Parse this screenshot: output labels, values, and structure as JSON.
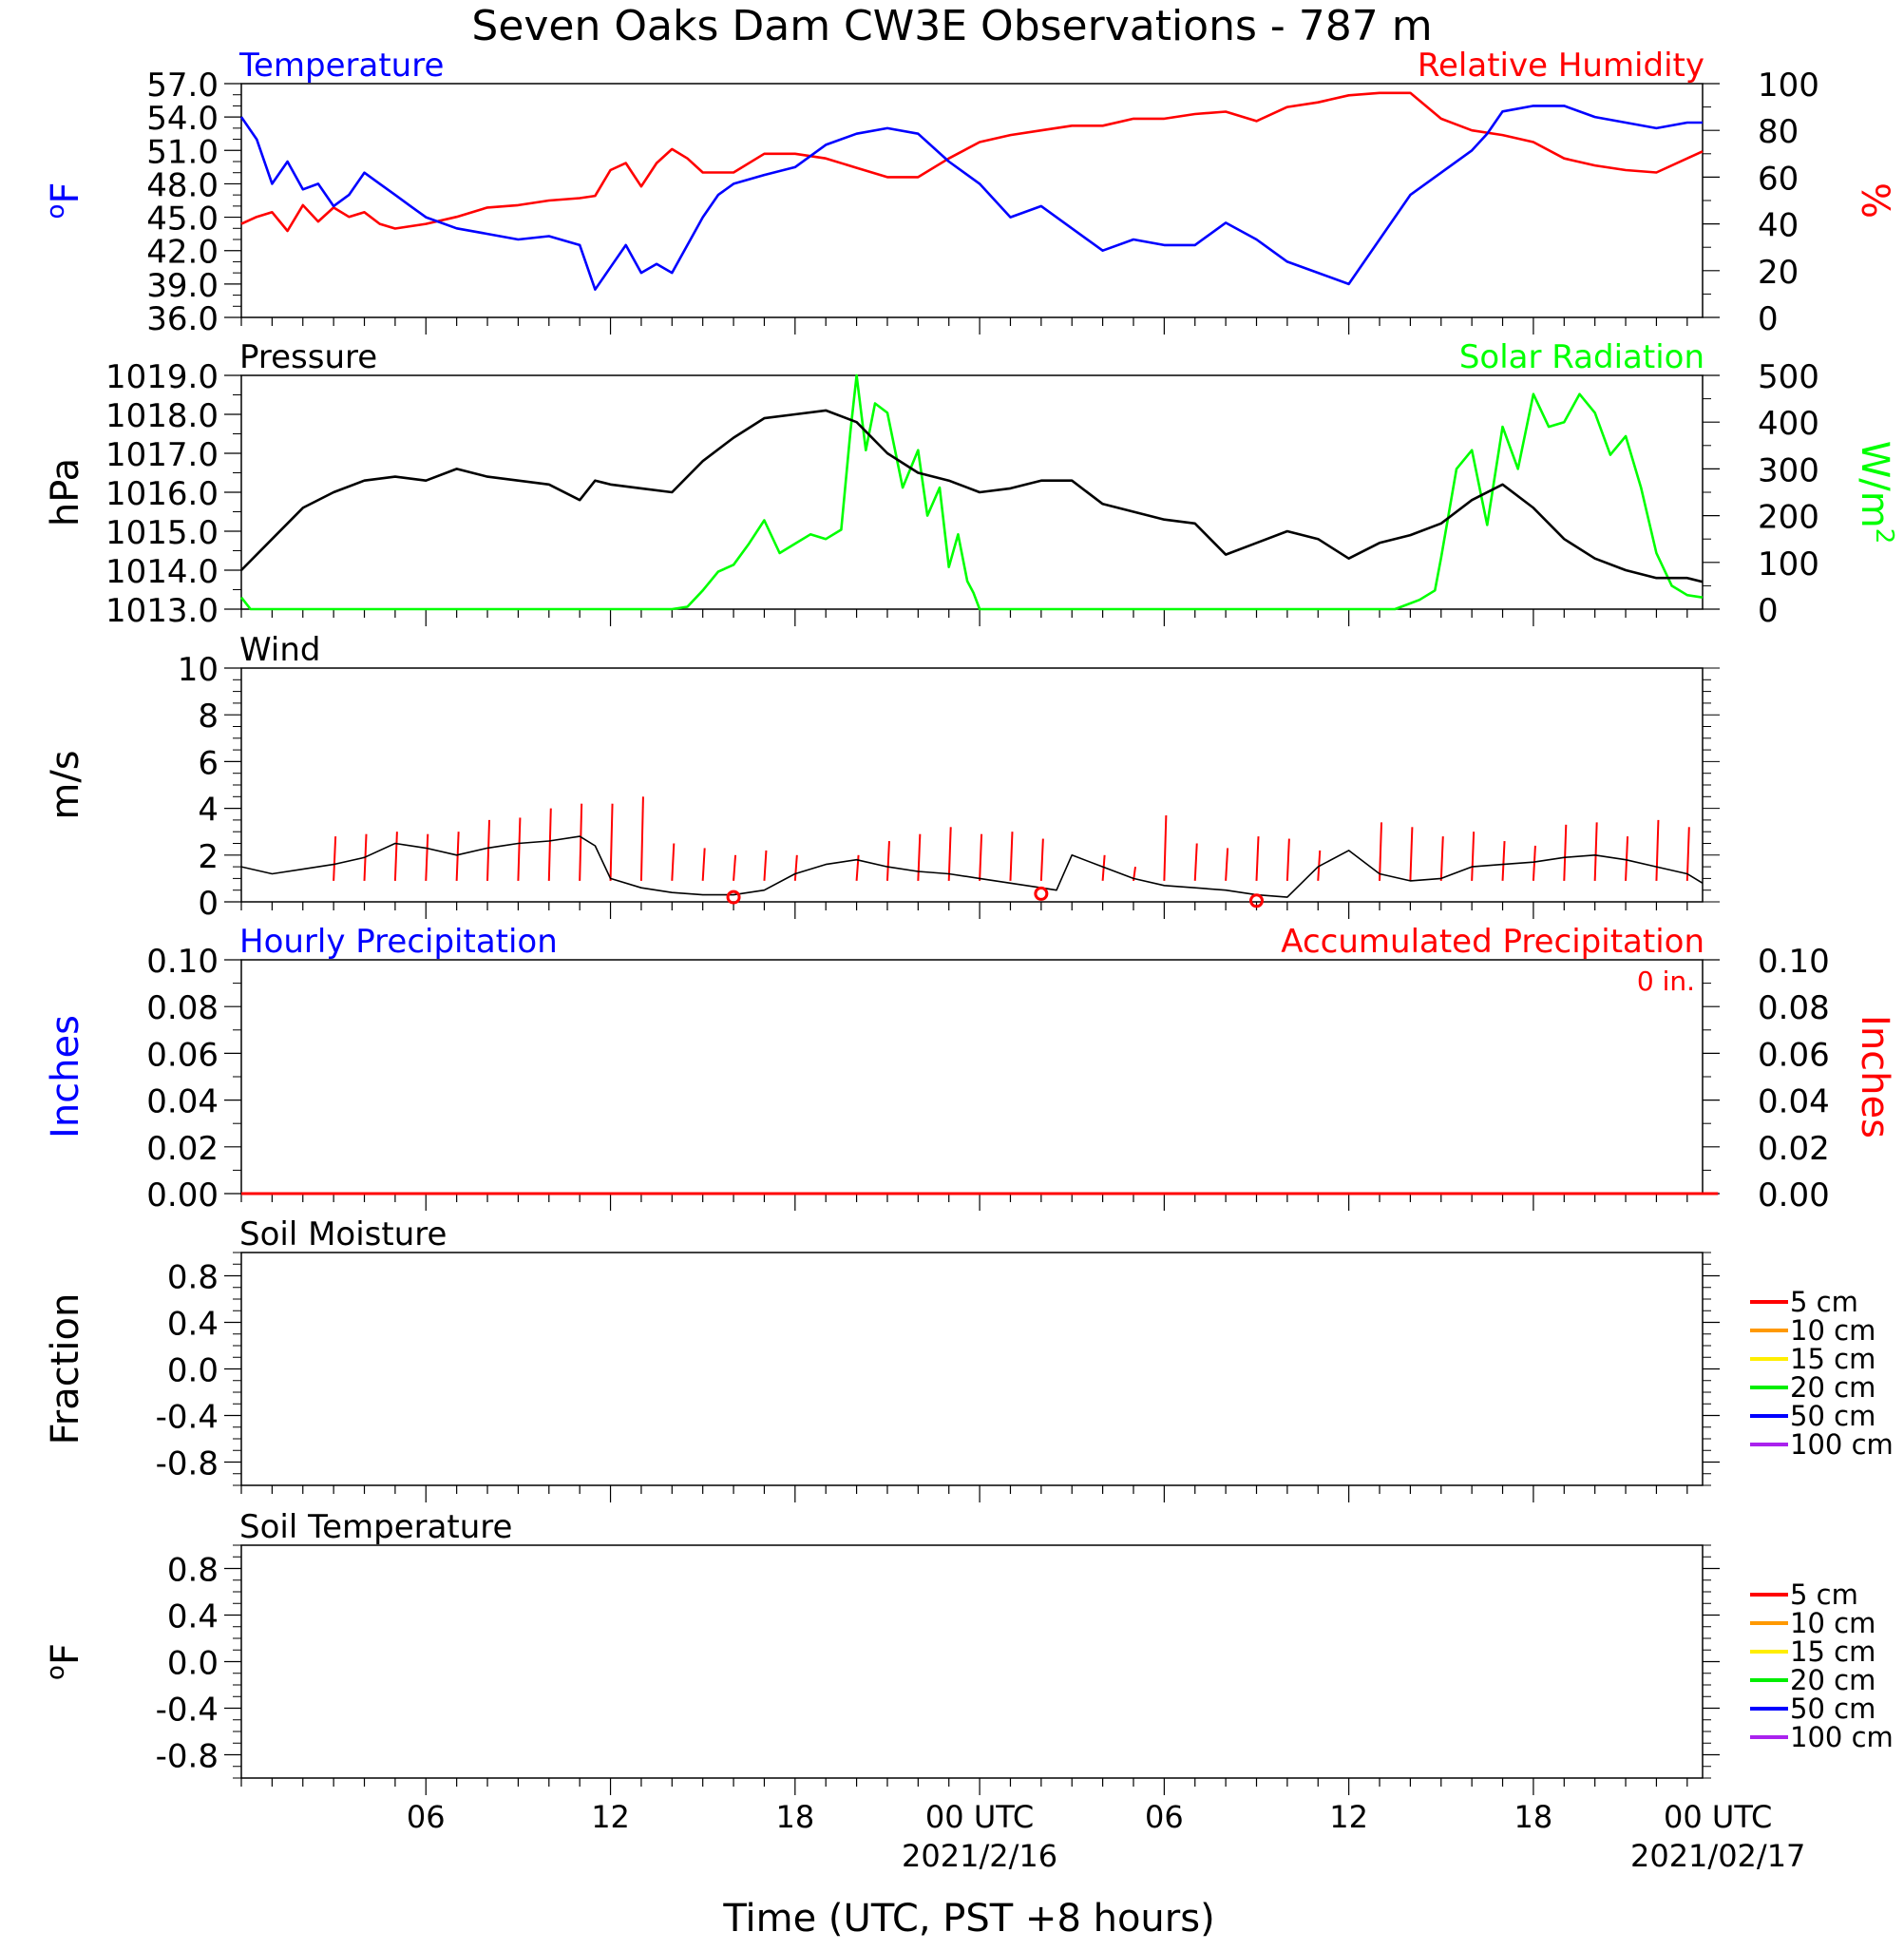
{
  "figure": {
    "title": "Seven Oaks Dam CW3E Observations - 787 m",
    "xlabel": "Time (UTC, PST +8 hours)",
    "x_ticks": [
      "06",
      "12",
      "18",
      "00 UTC",
      "06",
      "12",
      "18",
      "00 UTC"
    ],
    "x_dates": [
      "2021/2/16",
      "2021/02/17"
    ]
  },
  "chart_data": [
    {
      "type": "line",
      "panel": "temperature-humidity",
      "title_left": "Temperature",
      "title_right": "Relative Humidity",
      "ylabel_left": "oF",
      "ylabel_right": "%",
      "y_left_ticks": [
        "57.0",
        "54.0",
        "51.0",
        "48.0",
        "45.0",
        "42.0",
        "39.0",
        "36.0"
      ],
      "y_right_ticks": [
        "100",
        "80",
        "60",
        "40",
        "20",
        "0"
      ],
      "ylim_left": [
        36,
        57
      ],
      "ylim_right": [
        0,
        100
      ],
      "colors": {
        "left": "#0000ff",
        "right": "#ff0000"
      },
      "series": [
        {
          "name": "Temperature",
          "axis": "left",
          "x": [
            0,
            0.5,
            1,
            1.5,
            2,
            2.5,
            3,
            3.5,
            4,
            4.5,
            5,
            5.5,
            6,
            7,
            8,
            9,
            10,
            11,
            11.5,
            12,
            12.5,
            13,
            13.5,
            14,
            14.5,
            15,
            15.5,
            16,
            17,
            18,
            19,
            20,
            21,
            22,
            23,
            24,
            25,
            26,
            27,
            28,
            29,
            30,
            31,
            32,
            33,
            34,
            35,
            36,
            37,
            38,
            39,
            40,
            40.5,
            41,
            42,
            43,
            44,
            45,
            46,
            47,
            47.5
          ],
          "y": [
            54,
            52,
            48,
            50,
            47.5,
            48,
            46,
            47,
            49,
            48,
            47,
            46,
            45,
            44,
            43.5,
            43,
            43.3,
            42.5,
            38.5,
            40.5,
            42.5,
            40,
            40.8,
            40,
            42.5,
            45,
            47,
            48,
            48.8,
            49.5,
            51.5,
            52.5,
            53,
            52.5,
            50,
            48,
            45,
            46,
            44,
            42,
            43,
            42.5,
            42.5,
            44.5,
            43,
            41,
            40,
            39,
            43,
            47,
            49,
            51,
            52.5,
            54.5,
            55,
            55,
            54,
            53.5,
            53,
            53.5,
            53.5
          ]
        },
        {
          "name": "Relative Humidity",
          "axis": "right",
          "x": [
            0,
            0.5,
            1,
            1.5,
            2,
            2.5,
            3,
            3.5,
            4,
            4.5,
            5,
            6,
            7,
            8,
            9,
            10,
            11,
            11.5,
            12,
            12.5,
            13,
            13.5,
            14,
            14.5,
            15,
            16,
            17,
            18,
            19,
            20,
            21,
            22,
            23,
            24,
            25,
            26,
            27,
            28,
            29,
            30,
            31,
            32,
            33,
            34,
            35,
            36,
            37,
            38,
            39,
            40,
            41,
            42,
            43,
            44,
            45,
            46,
            47,
            47.5
          ],
          "y": [
            40,
            43,
            45,
            37,
            48,
            41,
            47,
            43,
            45,
            40,
            38,
            40,
            43,
            47,
            48,
            50,
            51,
            52,
            63,
            66,
            56,
            66,
            72,
            68,
            62,
            62,
            70,
            70,
            68,
            64,
            60,
            60,
            68,
            75,
            78,
            80,
            82,
            82,
            85,
            85,
            87,
            88,
            84,
            90,
            92,
            95,
            96,
            96,
            85,
            80,
            78,
            75,
            68,
            65,
            63,
            62,
            68,
            71
          ]
        }
      ]
    },
    {
      "type": "line",
      "panel": "pressure-solar",
      "title_left": "Pressure",
      "title_right": "Solar Radiation",
      "ylabel_left": "hPa",
      "ylabel_right": "W/m2",
      "y_left_ticks": [
        "1019.0",
        "1018.0",
        "1017.0",
        "1016.0",
        "1015.0",
        "1014.0",
        "1013.0"
      ],
      "y_right_ticks": [
        "500",
        "400",
        "300",
        "200",
        "100",
        "0"
      ],
      "ylim_left": [
        1013,
        1019
      ],
      "ylim_right": [
        0,
        500
      ],
      "colors": {
        "left": "#000000",
        "right": "#00ff00"
      },
      "series": [
        {
          "name": "Pressure",
          "axis": "left",
          "x": [
            0,
            1,
            2,
            3,
            4,
            5,
            6,
            7,
            8,
            9,
            10,
            11,
            11.5,
            12,
            13,
            14,
            15,
            16,
            17,
            18,
            19,
            20,
            21,
            22,
            23,
            24,
            25,
            26,
            27,
            28,
            29,
            30,
            31,
            32,
            33,
            34,
            35,
            36,
            37,
            38,
            39,
            40,
            41,
            42,
            43,
            44,
            45,
            46,
            47,
            47.5
          ],
          "y": [
            1014,
            1014.8,
            1015.6,
            1016,
            1016.3,
            1016.4,
            1016.3,
            1016.6,
            1016.4,
            1016.3,
            1016.2,
            1015.8,
            1016.3,
            1016.2,
            1016.1,
            1016,
            1016.8,
            1017.4,
            1017.9,
            1018,
            1018.1,
            1017.8,
            1017,
            1016.5,
            1016.3,
            1016,
            1016.1,
            1016.3,
            1016.3,
            1015.7,
            1015.5,
            1015.3,
            1015.2,
            1014.4,
            1014.7,
            1015,
            1014.8,
            1014.3,
            1014.7,
            1014.9,
            1015.2,
            1015.8,
            1016.2,
            1015.6,
            1014.8,
            1014.3,
            1014,
            1013.8,
            1013.8,
            1013.7
          ]
        },
        {
          "name": "Solar Radiation",
          "axis": "right",
          "x": [
            0,
            0.3,
            1,
            5,
            10,
            13,
            14,
            14.5,
            15,
            15.5,
            16,
            16.5,
            17,
            17.5,
            18,
            18.5,
            19,
            19.5,
            19.8,
            20,
            20.3,
            20.6,
            21,
            21.5,
            22,
            22.3,
            22.7,
            23,
            23.3,
            23.6,
            23.8,
            24,
            25,
            30,
            35,
            37.5,
            38.3,
            38.8,
            39,
            39.5,
            40,
            40.5,
            41,
            41.5,
            42,
            42.5,
            43,
            43.5,
            44,
            44.5,
            45,
            45.5,
            46,
            46.5,
            47,
            47.5
          ],
          "y": [
            25,
            0,
            0,
            0,
            0,
            0,
            0,
            5,
            40,
            80,
            95,
            140,
            190,
            120,
            140,
            160,
            150,
            170,
            380,
            500,
            340,
            440,
            420,
            260,
            340,
            200,
            260,
            90,
            160,
            60,
            35,
            0,
            0,
            0,
            0,
            0,
            20,
            40,
            110,
            300,
            340,
            180,
            390,
            300,
            460,
            390,
            400,
            460,
            420,
            330,
            370,
            260,
            120,
            50,
            30,
            25
          ]
        }
      ]
    },
    {
      "type": "line",
      "panel": "wind",
      "title": "Wind",
      "ylabel": "m/s",
      "y_ticks": [
        "10",
        "8",
        "6",
        "4",
        "2",
        "0"
      ],
      "ylim": [
        0,
        10
      ],
      "colors": {
        "speed": "#000000",
        "barbs": "#ff0000",
        "calm": "#ff0000"
      },
      "series": [
        {
          "name": "Wind speed",
          "x": [
            0,
            1,
            2,
            3,
            4,
            5,
            6,
            7,
            8,
            9,
            10,
            11,
            11.5,
            12,
            13,
            14,
            15,
            16,
            17,
            18,
            19,
            20,
            21,
            22,
            23,
            24,
            25,
            26,
            26.5,
            27,
            28,
            29,
            30,
            31,
            32,
            33,
            34,
            35,
            36,
            37,
            38,
            39,
            40,
            41,
            42,
            43,
            44,
            45,
            46,
            47,
            47.5
          ],
          "y": [
            1.5,
            1.2,
            1.4,
            1.6,
            1.9,
            2.5,
            2.3,
            2.0,
            2.3,
            2.5,
            2.6,
            2.8,
            2.4,
            1.0,
            0.6,
            0.4,
            0.3,
            0.3,
            0.5,
            1.2,
            1.6,
            1.8,
            1.5,
            1.3,
            1.2,
            1.0,
            0.8,
            0.6,
            0.5,
            2.0,
            1.5,
            1.0,
            0.7,
            0.6,
            0.5,
            0.3,
            0.2,
            1.5,
            2.2,
            1.2,
            0.9,
            1.0,
            1.5,
            1.6,
            1.7,
            1.9,
            2.0,
            1.8,
            1.5,
            1.2,
            0.8
          ]
        }
      ],
      "barbs": [
        {
          "x": 3,
          "speed": 2.8
        },
        {
          "x": 4,
          "speed": 2.9
        },
        {
          "x": 5,
          "speed": 3.0
        },
        {
          "x": 6,
          "speed": 2.9
        },
        {
          "x": 7,
          "speed": 3.0
        },
        {
          "x": 8,
          "speed": 3.5
        },
        {
          "x": 9,
          "speed": 3.6
        },
        {
          "x": 10,
          "speed": 4.0
        },
        {
          "x": 11,
          "speed": 4.2
        },
        {
          "x": 12,
          "speed": 4.2
        },
        {
          "x": 13,
          "speed": 4.5
        },
        {
          "x": 14,
          "speed": 2.5
        },
        {
          "x": 15,
          "speed": 2.3
        },
        {
          "x": 16,
          "speed": 2.0
        },
        {
          "x": 17,
          "speed": 2.2
        },
        {
          "x": 18,
          "speed": 2.0
        },
        {
          "x": 20,
          "speed": 2.0
        },
        {
          "x": 21,
          "speed": 2.6
        },
        {
          "x": 22,
          "speed": 2.9
        },
        {
          "x": 23,
          "speed": 3.2
        },
        {
          "x": 24,
          "speed": 2.9
        },
        {
          "x": 25,
          "speed": 3.0
        },
        {
          "x": 26,
          "speed": 2.7
        },
        {
          "x": 28,
          "speed": 2.0
        },
        {
          "x": 29,
          "speed": 1.5
        },
        {
          "x": 30,
          "speed": 3.7
        },
        {
          "x": 31,
          "speed": 2.5
        },
        {
          "x": 32,
          "speed": 2.3
        },
        {
          "x": 33,
          "speed": 2.8
        },
        {
          "x": 34,
          "speed": 2.7
        },
        {
          "x": 35,
          "speed": 2.2
        },
        {
          "x": 37,
          "speed": 3.4
        },
        {
          "x": 38,
          "speed": 3.2
        },
        {
          "x": 39,
          "speed": 2.8
        },
        {
          "x": 40,
          "speed": 3.0
        },
        {
          "x": 41,
          "speed": 2.6
        },
        {
          "x": 42,
          "speed": 2.4
        },
        {
          "x": 43,
          "speed": 3.3
        },
        {
          "x": 44,
          "speed": 3.4
        },
        {
          "x": 45,
          "speed": 2.8
        },
        {
          "x": 46,
          "speed": 3.5
        },
        {
          "x": 47,
          "speed": 3.2
        }
      ],
      "calm_markers": [
        {
          "x": 16,
          "y": 0.2
        },
        {
          "x": 26,
          "y": 0.35
        },
        {
          "x": 33,
          "y": 0.05
        }
      ]
    },
    {
      "type": "line",
      "panel": "precipitation",
      "title_left": "Hourly Precipitation",
      "title_right": "Accumulated Precipitation",
      "annotation": "0 in.",
      "ylabel_left": "Inches",
      "ylabel_right": "Inches",
      "y_left_ticks": [
        "0.10",
        "0.08",
        "0.06",
        "0.04",
        "0.02",
        "0.00"
      ],
      "y_right_ticks": [
        "0.10",
        "0.08",
        "0.06",
        "0.04",
        "0.02",
        "0.00"
      ],
      "ylim": [
        0,
        0.1
      ],
      "colors": {
        "left": "#0000ff",
        "right": "#ff0000"
      },
      "series": [
        {
          "name": "Hourly Precipitation",
          "x": [
            0,
            48
          ],
          "y": [
            0,
            0
          ]
        },
        {
          "name": "Accumulated Precipitation",
          "x": [
            0,
            48
          ],
          "y": [
            0,
            0
          ]
        }
      ]
    },
    {
      "type": "line",
      "panel": "soil-moisture",
      "title": "Soil Moisture",
      "ylabel": "Fraction",
      "y_ticks": [
        "0.8",
        "0.4",
        "0.0",
        "-0.4",
        "-0.8"
      ],
      "ylim": [
        -1,
        1
      ],
      "legend": [
        {
          "label": "5 cm",
          "color": "#ff0000"
        },
        {
          "label": "10 cm",
          "color": "#ff9900"
        },
        {
          "label": "15 cm",
          "color": "#ffee00"
        },
        {
          "label": "20 cm",
          "color": "#00ee00"
        },
        {
          "label": "50 cm",
          "color": "#0000ff"
        },
        {
          "label": "100 cm",
          "color": "#aa22ee"
        }
      ]
    },
    {
      "type": "line",
      "panel": "soil-temperature",
      "title": "Soil Temperature",
      "ylabel": "oF",
      "y_ticks": [
        "0.8",
        "0.4",
        "0.0",
        "-0.4",
        "-0.8"
      ],
      "ylim": [
        -1,
        1
      ],
      "legend": [
        {
          "label": "5 cm",
          "color": "#ff0000"
        },
        {
          "label": "10 cm",
          "color": "#ff9900"
        },
        {
          "label": "15 cm",
          "color": "#ffee00"
        },
        {
          "label": "20 cm",
          "color": "#00ee00"
        },
        {
          "label": "50 cm",
          "color": "#0000ff"
        },
        {
          "label": "100 cm",
          "color": "#aa22ee"
        }
      ]
    }
  ]
}
